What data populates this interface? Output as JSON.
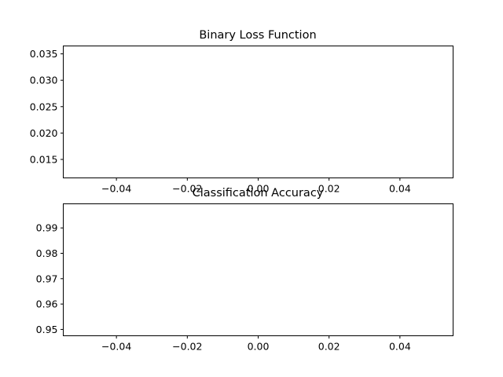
{
  "chart_data": [
    {
      "type": "line",
      "title": "Binary Loss Function",
      "xlabel": "",
      "ylabel": "",
      "series": [
        {
          "values": []
        }
      ],
      "xlim": [
        -0.055,
        0.055
      ],
      "ylim": [
        0.0115,
        0.0365
      ],
      "xticks": [
        -0.04,
        -0.02,
        0.0,
        0.02,
        0.04
      ],
      "xtick_labels": [
        "−0.04",
        "−0.02",
        "0.00",
        "0.02",
        "0.04"
      ],
      "yticks": [
        0.015,
        0.02,
        0.025,
        0.03,
        0.035
      ],
      "ytick_labels": [
        "0.015",
        "0.020",
        "0.025",
        "0.030",
        "0.035"
      ],
      "grid": false
    },
    {
      "type": "line",
      "title": "Classification Accuracy",
      "xlabel": "",
      "ylabel": "",
      "series": [
        {
          "values": []
        }
      ],
      "xlim": [
        -0.055,
        0.055
      ],
      "ylim": [
        0.9475,
        0.9995
      ],
      "xticks": [
        -0.04,
        -0.02,
        0.0,
        0.02,
        0.04
      ],
      "xtick_labels": [
        "−0.04",
        "−0.02",
        "0.00",
        "0.02",
        "0.04"
      ],
      "yticks": [
        0.95,
        0.96,
        0.97,
        0.98,
        0.99
      ],
      "ytick_labels": [
        "0.95",
        "0.96",
        "0.97",
        "0.98",
        "0.99"
      ],
      "grid": false
    }
  ]
}
